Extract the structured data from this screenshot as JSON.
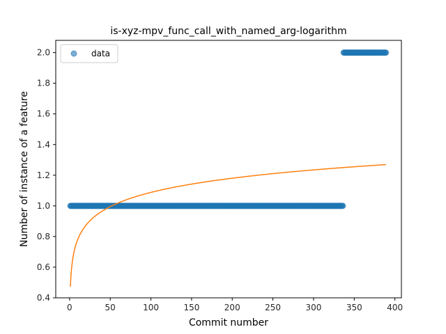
{
  "chart_data": {
    "type": "scatter",
    "title": "is-xyz-mpv_func_call_with_named_arg-logarithm",
    "xlabel": "Commit number",
    "ylabel": "Number of instance of a feature",
    "xlim": [
      -17,
      408
    ],
    "ylim": [
      0.4,
      2.08
    ],
    "xticks": [
      0,
      50,
      100,
      150,
      200,
      250,
      300,
      350,
      400
    ],
    "yticks": [
      0.4,
      0.6,
      0.8,
      1.0,
      1.2,
      1.4,
      1.6,
      1.8,
      2.0
    ],
    "xtick_labels": [
      "0",
      "50",
      "100",
      "150",
      "200",
      "250",
      "300",
      "350",
      "400"
    ],
    "ytick_labels": [
      "0.4",
      "0.6",
      "0.8",
      "1.0",
      "1.2",
      "1.4",
      "1.6",
      "1.8",
      "2.0"
    ],
    "grid": false,
    "legend_position": "top-left",
    "series": [
      {
        "name": "data",
        "kind": "scatter",
        "color": "#1f77b4",
        "segments": [
          {
            "x_start": 1,
            "x_end": 336,
            "y": 1.0
          },
          {
            "x_start": 337,
            "x_end": 389,
            "y": 2.0
          }
        ]
      },
      {
        "kind": "line",
        "color": "#ff7f0e",
        "model": "logarithmic",
        "a": 0.4726,
        "b": 0.1336,
        "x_start": 1,
        "x_end": 389
      }
    ]
  }
}
